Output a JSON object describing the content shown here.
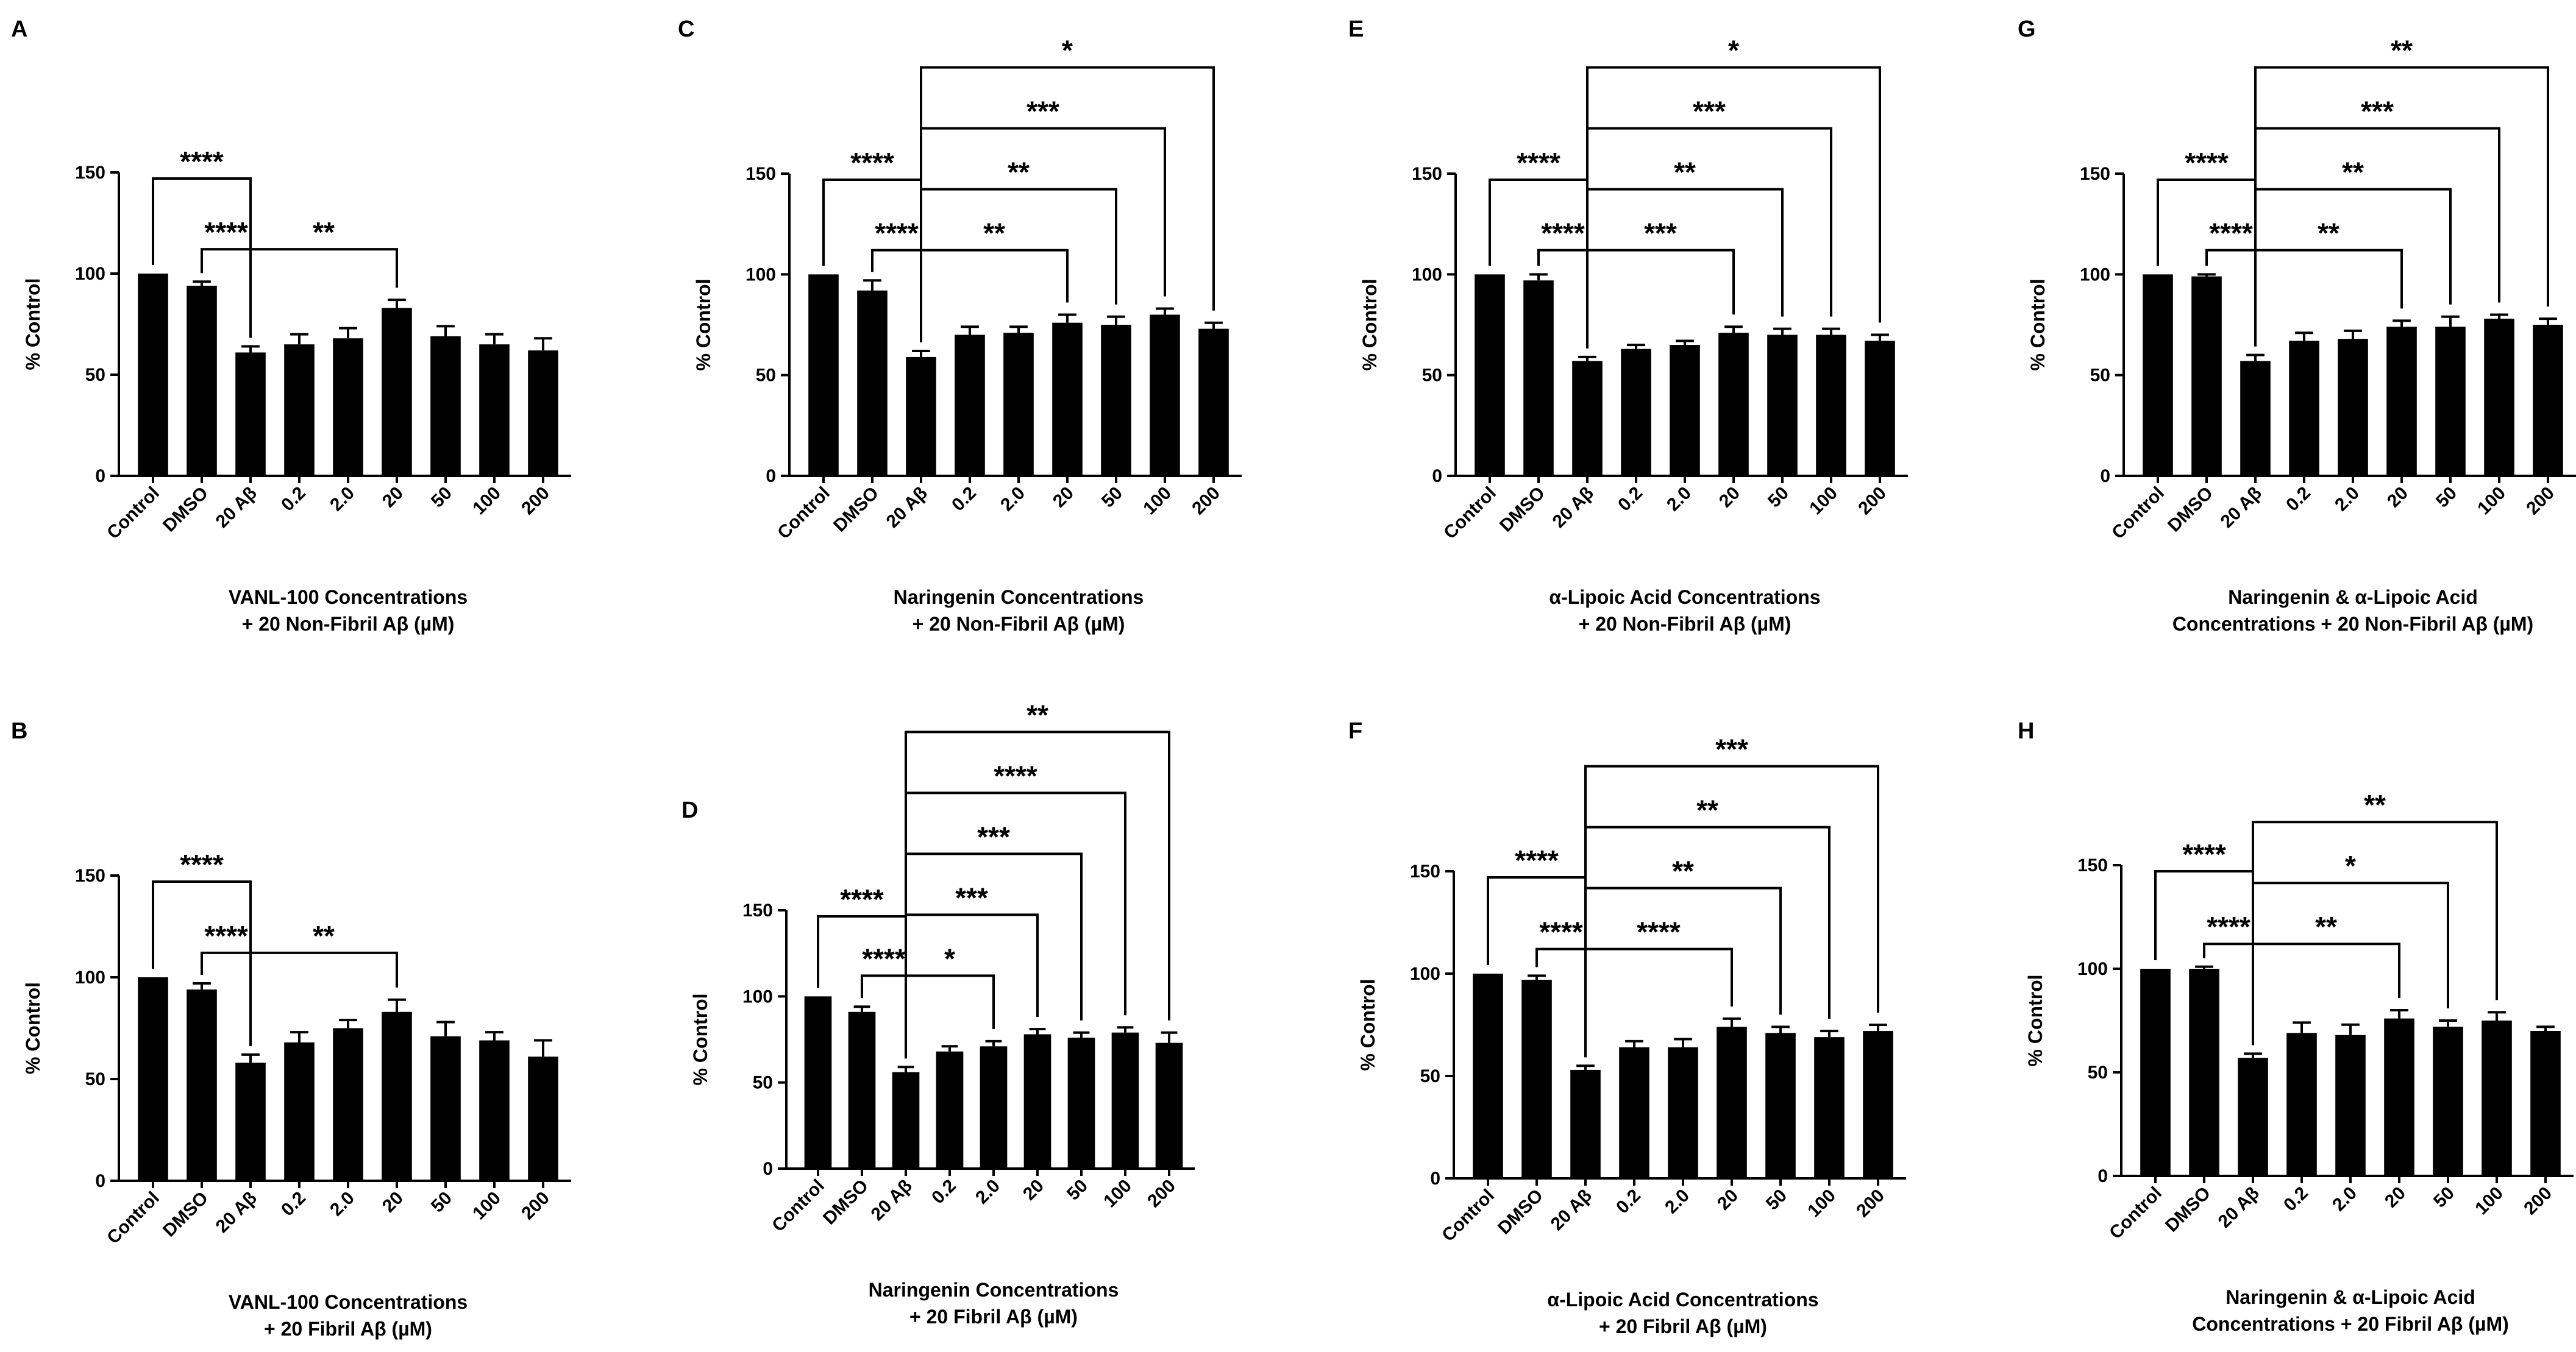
{
  "figure": {
    "background": "#ffffff",
    "bar_color": "#000000"
  },
  "chart_data": [
    {
      "panel": "A",
      "type": "bar",
      "categories": [
        "Control",
        "DMSO",
        "20 Aβ",
        "0.2",
        "2.0",
        "20",
        "50",
        "100",
        "200"
      ],
      "values": [
        100,
        94,
        61,
        65,
        68,
        83,
        69,
        65,
        62
      ],
      "errors": [
        0,
        2,
        3,
        5,
        5,
        4,
        5,
        5,
        6
      ],
      "ylabel": "% Control",
      "xlabel": [
        "VANL-100 Concentrations",
        "+ 20 Non-Fibril Aβ (µM)"
      ],
      "ylim": [
        0,
        150
      ],
      "yticks": [
        0,
        50,
        100,
        150
      ],
      "significance": [
        {
          "from": 0,
          "to": 2,
          "label": "****"
        },
        {
          "from": 1,
          "to": 2,
          "label": "****"
        },
        {
          "from": 2,
          "to": 5,
          "label": "**"
        }
      ]
    },
    {
      "panel": "B",
      "type": "bar",
      "categories": [
        "Control",
        "DMSO",
        "20 Aβ",
        "0.2",
        "2.0",
        "20",
        "50",
        "100",
        "200"
      ],
      "values": [
        100,
        94,
        58,
        68,
        75,
        83,
        71,
        69,
        61
      ],
      "errors": [
        0,
        3,
        4,
        5,
        4,
        6,
        7,
        4,
        8
      ],
      "ylabel": "% Control",
      "xlabel": [
        "VANL-100 Concentrations",
        "+ 20 Fibril Aβ (µM)"
      ],
      "ylim": [
        0,
        150
      ],
      "yticks": [
        0,
        50,
        100,
        150
      ],
      "significance": [
        {
          "from": 0,
          "to": 2,
          "label": "****"
        },
        {
          "from": 1,
          "to": 2,
          "label": "****"
        },
        {
          "from": 2,
          "to": 5,
          "label": "**"
        }
      ]
    },
    {
      "panel": "C",
      "type": "bar",
      "categories": [
        "Control",
        "DMSO",
        "20 Aβ",
        "0.2",
        "2.0",
        "20",
        "50",
        "100",
        "200"
      ],
      "values": [
        100,
        92,
        59,
        70,
        71,
        76,
        75,
        80,
        73
      ],
      "errors": [
        0,
        5,
        3,
        4,
        3,
        4,
        4,
        3,
        3
      ],
      "ylabel": "% Control",
      "xlabel": [
        "Naringenin Concentrations",
        "+ 20 Non-Fibril Aβ (µM)"
      ],
      "ylim": [
        0,
        150
      ],
      "yticks": [
        0,
        50,
        100,
        150
      ],
      "significance": [
        {
          "from": 0,
          "to": 2,
          "label": "****"
        },
        {
          "from": 1,
          "to": 2,
          "label": "****"
        },
        {
          "from": 2,
          "to": 5,
          "label": "**"
        },
        {
          "from": 2,
          "to": 6,
          "label": "**"
        },
        {
          "from": 2,
          "to": 7,
          "label": "***"
        },
        {
          "from": 2,
          "to": 8,
          "label": "*"
        }
      ]
    },
    {
      "panel": "D",
      "type": "bar",
      "categories": [
        "Control",
        "DMSO",
        "20 Aβ",
        "0.2",
        "2.0",
        "20",
        "50",
        "100",
        "200"
      ],
      "values": [
        100,
        91,
        56,
        68,
        71,
        78,
        76,
        79,
        73
      ],
      "errors": [
        0,
        3,
        3,
        3,
        3,
        3,
        3,
        3,
        6
      ],
      "ylabel": "% Control",
      "xlabel": [
        "Naringenin Concentrations",
        "+ 20 Fibril Aβ (µM)"
      ],
      "ylim": [
        0,
        150
      ],
      "yticks": [
        0,
        50,
        100,
        150
      ],
      "significance": [
        {
          "from": 0,
          "to": 2,
          "label": "****"
        },
        {
          "from": 1,
          "to": 2,
          "label": "****"
        },
        {
          "from": 2,
          "to": 4,
          "label": "*"
        },
        {
          "from": 2,
          "to": 5,
          "label": "***"
        },
        {
          "from": 2,
          "to": 6,
          "label": "***"
        },
        {
          "from": 2,
          "to": 7,
          "label": "****"
        },
        {
          "from": 2,
          "to": 8,
          "label": "**"
        }
      ]
    },
    {
      "panel": "E",
      "type": "bar",
      "categories": [
        "Control",
        "DMSO",
        "20 Aβ",
        "0.2",
        "2.0",
        "20",
        "50",
        "100",
        "200"
      ],
      "values": [
        100,
        97,
        57,
        63,
        65,
        71,
        70,
        70,
        67
      ],
      "errors": [
        0,
        3,
        2,
        2,
        2,
        3,
        3,
        3,
        3
      ],
      "ylabel": "% Control",
      "xlabel": [
        "α-Lipoic Acid Concentrations",
        "+ 20 Non-Fibril Aβ (µM)"
      ],
      "ylim": [
        0,
        150
      ],
      "yticks": [
        0,
        50,
        100,
        150
      ],
      "significance": [
        {
          "from": 0,
          "to": 2,
          "label": "****"
        },
        {
          "from": 1,
          "to": 2,
          "label": "****"
        },
        {
          "from": 2,
          "to": 5,
          "label": "***"
        },
        {
          "from": 2,
          "to": 6,
          "label": "**"
        },
        {
          "from": 2,
          "to": 7,
          "label": "***"
        },
        {
          "from": 2,
          "to": 8,
          "label": "*"
        }
      ]
    },
    {
      "panel": "F",
      "type": "bar",
      "categories": [
        "Control",
        "DMSO",
        "20 Aβ",
        "0.2",
        "2.0",
        "20",
        "50",
        "100",
        "200"
      ],
      "values": [
        100,
        97,
        53,
        64,
        64,
        74,
        71,
        69,
        72
      ],
      "errors": [
        0,
        2,
        2,
        3,
        4,
        4,
        3,
        3,
        3
      ],
      "ylabel": "% Control",
      "xlabel": [
        "α-Lipoic Acid Concentrations",
        "+ 20 Fibril Aβ (µM)"
      ],
      "ylim": [
        0,
        150
      ],
      "yticks": [
        0,
        50,
        100,
        150
      ],
      "significance": [
        {
          "from": 0,
          "to": 2,
          "label": "****"
        },
        {
          "from": 1,
          "to": 2,
          "label": "****"
        },
        {
          "from": 2,
          "to": 5,
          "label": "****"
        },
        {
          "from": 2,
          "to": 6,
          "label": "**"
        },
        {
          "from": 2,
          "to": 7,
          "label": "**"
        },
        {
          "from": 2,
          "to": 8,
          "label": "***"
        }
      ]
    },
    {
      "panel": "G",
      "type": "bar",
      "categories": [
        "Control",
        "DMSO",
        "20 Aβ",
        "0.2",
        "2.0",
        "20",
        "50",
        "100",
        "200"
      ],
      "values": [
        100,
        99,
        57,
        67,
        68,
        74,
        74,
        78,
        75
      ],
      "errors": [
        0,
        1,
        3,
        4,
        4,
        3,
        5,
        2,
        3
      ],
      "ylabel": "% Control",
      "xlabel": [
        "Naringenin & α-Lipoic Acid",
        "Concentrations + 20 Non-Fibril Aβ (µM)"
      ],
      "ylim": [
        0,
        150
      ],
      "yticks": [
        0,
        50,
        100,
        150
      ],
      "significance": [
        {
          "from": 0,
          "to": 2,
          "label": "****"
        },
        {
          "from": 1,
          "to": 2,
          "label": "****"
        },
        {
          "from": 2,
          "to": 5,
          "label": "**"
        },
        {
          "from": 2,
          "to": 6,
          "label": "**"
        },
        {
          "from": 2,
          "to": 7,
          "label": "***"
        },
        {
          "from": 2,
          "to": 8,
          "label": "**"
        }
      ]
    },
    {
      "panel": "H",
      "type": "bar",
      "categories": [
        "Control",
        "DMSO",
        "20 Aβ",
        "0.2",
        "2.0",
        "20",
        "50",
        "100",
        "200"
      ],
      "values": [
        100,
        100,
        57,
        69,
        68,
        76,
        72,
        75,
        70
      ],
      "errors": [
        0,
        1,
        2,
        5,
        5,
        4,
        3,
        4,
        2
      ],
      "ylabel": "% Control",
      "xlabel": [
        "Naringenin & α-Lipoic Acid",
        "Concentrations + 20 Fibril Aβ (µM)"
      ],
      "ylim": [
        0,
        150
      ],
      "yticks": [
        0,
        50,
        100,
        150
      ],
      "significance": [
        {
          "from": 0,
          "to": 2,
          "label": "****"
        },
        {
          "from": 1,
          "to": 2,
          "label": "****"
        },
        {
          "from": 2,
          "to": 5,
          "label": "**"
        },
        {
          "from": 2,
          "to": 6,
          "label": "*"
        },
        {
          "from": 2,
          "to": 7,
          "label": "**"
        }
      ]
    }
  ]
}
